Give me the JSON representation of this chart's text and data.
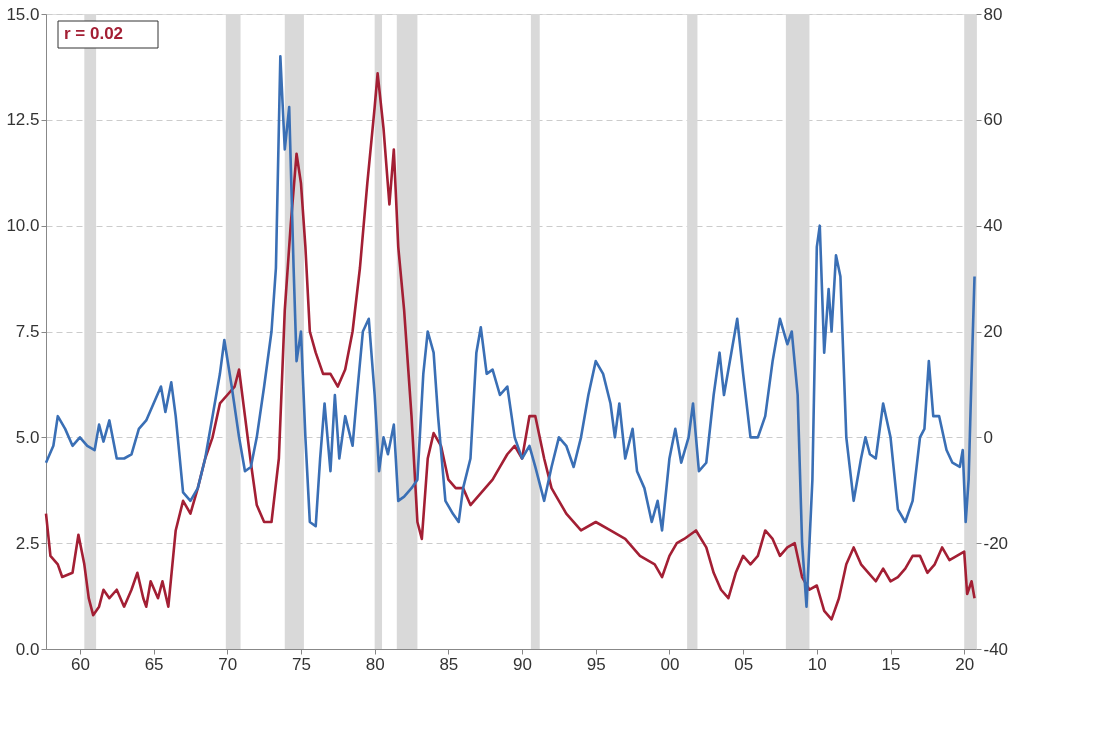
{
  "chart_data": {
    "type": "line",
    "annotations": [
      "r = 0.02"
    ],
    "xlim": [
      1957.7,
      2020.8
    ],
    "xticks": [
      {
        "value": 1960,
        "label": "60"
      },
      {
        "value": 1965,
        "label": "65"
      },
      {
        "value": 1970,
        "label": "70"
      },
      {
        "value": 1975,
        "label": "75"
      },
      {
        "value": 1980,
        "label": "80"
      },
      {
        "value": 1985,
        "label": "85"
      },
      {
        "value": 1990,
        "label": "90"
      },
      {
        "value": 1995,
        "label": "95"
      },
      {
        "value": 2000,
        "label": "00"
      },
      {
        "value": 2005,
        "label": "05"
      },
      {
        "value": 2010,
        "label": "10"
      },
      {
        "value": 2015,
        "label": "15"
      },
      {
        "value": 2020,
        "label": "20"
      }
    ],
    "ylim": [
      0,
      15
    ],
    "yticks": [
      {
        "value": 0,
        "label": "0.0"
      },
      {
        "value": 2.5,
        "label": "2.5"
      },
      {
        "value": 5,
        "label": "5.0"
      },
      {
        "value": 7.5,
        "label": "7.5"
      },
      {
        "value": 10,
        "label": "10.0"
      },
      {
        "value": 12.5,
        "label": "12.5"
      },
      {
        "value": 15,
        "label": "15.0"
      }
    ],
    "y2lim": [
      -40,
      80
    ],
    "y2ticks": [
      -40,
      -20,
      0,
      20,
      40,
      60,
      80
    ],
    "grid": "y",
    "line_style": "solid",
    "marker": "none",
    "bands": [
      {
        "axis": "x",
        "from": 1960.3,
        "to": 1961.1,
        "color": "#d9d9d9"
      },
      {
        "axis": "x",
        "from": 1969.9,
        "to": 1970.9,
        "color": "#d9d9d9"
      },
      {
        "axis": "x",
        "from": 1973.9,
        "to": 1975.2,
        "color": "#d9d9d9"
      },
      {
        "axis": "x",
        "from": 1980.0,
        "to": 1980.5,
        "color": "#d9d9d9"
      },
      {
        "axis": "x",
        "from": 1981.5,
        "to": 1982.9,
        "color": "#d9d9d9"
      },
      {
        "axis": "x",
        "from": 1990.6,
        "to": 1991.2,
        "color": "#d9d9d9"
      },
      {
        "axis": "x",
        "from": 2001.2,
        "to": 2001.9,
        "color": "#d9d9d9"
      },
      {
        "axis": "x",
        "from": 2007.9,
        "to": 2009.5,
        "color": "#d9d9d9"
      },
      {
        "axis": "x",
        "from": 2020.0,
        "to": 2020.8,
        "color": "#d9d9d9"
      }
    ],
    "series": [
      {
        "color": "#a31f34",
        "x": [
          1957.7,
          1958.0,
          1958.5,
          1958.8,
          1959.5,
          1959.9,
          1960.3,
          1960.6,
          1960.9,
          1961.3,
          1961.6,
          1962.0,
          1962.5,
          1963.0,
          1963.5,
          1963.9,
          1964.3,
          1964.5,
          1964.8,
          1965.3,
          1965.6,
          1966.0,
          1966.5,
          1967.0,
          1967.5,
          1968.0,
          1968.5,
          1969.0,
          1969.5,
          1970.0,
          1970.5,
          1970.8,
          1971.2,
          1971.6,
          1972.0,
          1972.5,
          1973.0,
          1973.5,
          1973.9,
          1974.3,
          1974.7,
          1975.0,
          1975.3,
          1975.6,
          1976.0,
          1976.5,
          1977.0,
          1977.5,
          1978.0,
          1978.5,
          1979.0,
          1979.5,
          1980.0,
          1980.2,
          1980.6,
          1981.0,
          1981.3,
          1981.6,
          1982.0,
          1982.5,
          1982.9,
          1983.2,
          1983.6,
          1984.0,
          1984.5,
          1985.0,
          1985.5,
          1986.0,
          1986.5,
          1987.0,
          1987.5,
          1988.0,
          1988.5,
          1989.0,
          1989.5,
          1990.0,
          1990.5,
          1990.9,
          1991.5,
          1992.0,
          1992.5,
          1993.0,
          1994.0,
          1995.0,
          1996.0,
          1997.0,
          1998.0,
          1999.0,
          1999.5,
          2000.0,
          2000.5,
          2001.0,
          2001.8,
          2002.5,
          2003.0,
          2003.5,
          2004.0,
          2004.5,
          2005.0,
          2005.5,
          2006.0,
          2006.5,
          2007.0,
          2007.5,
          2008.0,
          2008.5,
          2009.0,
          2009.5,
          2010.0,
          2010.5,
          2011.0,
          2011.5,
          2012.0,
          2012.5,
          2013.0,
          2013.5,
          2014.0,
          2014.5,
          2015.0,
          2015.5,
          2016.0,
          2016.5,
          2017.0,
          2017.5,
          2018.0,
          2018.5,
          2019.0,
          2019.5,
          2020.0,
          2020.2,
          2020.5,
          2020.7
        ],
        "values": [
          3.2,
          2.2,
          2.0,
          1.7,
          1.8,
          2.7,
          2.0,
          1.2,
          0.8,
          1.0,
          1.4,
          1.2,
          1.4,
          1.0,
          1.4,
          1.8,
          1.2,
          1.0,
          1.6,
          1.2,
          1.6,
          1.0,
          2.8,
          3.5,
          3.2,
          3.8,
          4.5,
          5.0,
          5.8,
          6.0,
          6.2,
          6.6,
          5.5,
          4.4,
          3.4,
          3.0,
          3.0,
          4.5,
          8.0,
          10.0,
          11.7,
          11.0,
          9.5,
          7.5,
          7.0,
          6.5,
          6.5,
          6.2,
          6.6,
          7.5,
          9.0,
          11.0,
          12.8,
          13.6,
          12.3,
          10.5,
          11.8,
          9.5,
          8.0,
          5.5,
          3.0,
          2.6,
          4.5,
          5.1,
          4.8,
          4.0,
          3.8,
          3.8,
          3.4,
          3.6,
          3.8,
          4.0,
          4.3,
          4.6,
          4.8,
          4.5,
          5.5,
          5.5,
          4.5,
          3.8,
          3.5,
          3.2,
          2.8,
          3.0,
          2.8,
          2.6,
          2.2,
          2.0,
          1.7,
          2.2,
          2.5,
          2.6,
          2.8,
          2.4,
          1.8,
          1.4,
          1.2,
          1.8,
          2.2,
          2.0,
          2.2,
          2.8,
          2.6,
          2.2,
          2.4,
          2.5,
          1.7,
          1.4,
          1.5,
          0.9,
          0.7,
          1.2,
          2.0,
          2.4,
          2.0,
          1.8,
          1.6,
          1.9,
          1.6,
          1.7,
          1.9,
          2.2,
          2.2,
          1.8,
          2.0,
          2.4,
          2.1,
          2.2,
          2.3,
          1.3,
          1.6,
          1.2
        ]
      },
      {
        "color": "#3a6fb5",
        "axis": "y2",
        "x": [
          1957.7,
          1958.2,
          1958.5,
          1959.0,
          1959.5,
          1960.0,
          1960.5,
          1961.0,
          1961.3,
          1961.6,
          1962.0,
          1962.5,
          1963.0,
          1963.5,
          1964.0,
          1964.5,
          1965.0,
          1965.5,
          1965.8,
          1966.2,
          1966.5,
          1967.0,
          1967.5,
          1968.0,
          1968.5,
          1969.0,
          1969.5,
          1969.8,
          1970.3,
          1970.8,
          1971.2,
          1971.6,
          1972.0,
          1972.5,
          1973.0,
          1973.3,
          1973.6,
          1973.9,
          1974.2,
          1974.5,
          1974.7,
          1975.0,
          1975.3,
          1975.6,
          1976.0,
          1976.3,
          1976.6,
          1977.0,
          1977.3,
          1977.6,
          1978.0,
          1978.5,
          1978.8,
          1979.2,
          1979.6,
          1980.0,
          1980.3,
          1980.6,
          1980.9,
          1981.3,
          1981.6,
          1982.0,
          1982.5,
          1982.9,
          1983.3,
          1983.6,
          1984.0,
          1984.3,
          1984.8,
          1985.3,
          1985.7,
          1986.0,
          1986.5,
          1986.9,
          1987.2,
          1987.6,
          1988.0,
          1988.5,
          1989.0,
          1989.5,
          1990.0,
          1990.5,
          1990.9,
          1991.5,
          1992.0,
          1992.5,
          1993.0,
          1993.5,
          1994.0,
          1994.5,
          1995.0,
          1995.5,
          1996.0,
          1996.3,
          1996.6,
          1997.0,
          1997.5,
          1997.8,
          1998.3,
          1998.8,
          1999.2,
          1999.5,
          2000.0,
          2000.4,
          2000.8,
          2001.3,
          2001.6,
          2002.0,
          2002.5,
          2003.0,
          2003.4,
          2003.7,
          2004.2,
          2004.6,
          2005.0,
          2005.5,
          2006.0,
          2006.5,
          2007.0,
          2007.5,
          2008.0,
          2008.3,
          2008.7,
          2009.0,
          2009.3,
          2009.7,
          2010.0,
          2010.2,
          2010.5,
          2010.8,
          2011.0,
          2011.3,
          2011.6,
          2012.0,
          2012.5,
          2013.0,
          2013.3,
          2013.6,
          2014.0,
          2014.5,
          2015.0,
          2015.5,
          2016.0,
          2016.5,
          2017.0,
          2017.3,
          2017.6,
          2017.9,
          2018.3,
          2018.8,
          2019.2,
          2019.7,
          2019.9,
          2020.1,
          2020.3,
          2020.5,
          2020.7
        ],
        "values": [
          -4.8,
          -1.6,
          4,
          1.6,
          -1.6,
          0,
          -1.6,
          -2.4,
          2.4,
          -0.8,
          3.2,
          -4,
          -4,
          -3.2,
          1.6,
          3.2,
          6.4,
          9.6,
          4.8,
          10.4,
          4,
          -10.4,
          -12,
          -9.6,
          -4,
          4,
          12,
          18.4,
          9.6,
          0,
          -6.4,
          -5.6,
          0,
          9.6,
          20,
          32,
          72,
          54.4,
          62.4,
          32,
          14.4,
          20,
          0,
          -16,
          -16.8,
          -4,
          6.4,
          -6.4,
          8,
          -4,
          4,
          -1.6,
          8,
          20,
          22.4,
          8,
          -6.4,
          0,
          -3.2,
          2.4,
          -12,
          -11.2,
          -9.6,
          -8,
          12,
          20,
          16,
          4,
          -12,
          -14.4,
          -16,
          -9.6,
          -4,
          16,
          20.8,
          12,
          12.8,
          8,
          9.6,
          0,
          -4,
          -1.6,
          -5.6,
          -12,
          -5.6,
          0,
          -1.6,
          -5.6,
          0,
          8,
          14.4,
          12,
          6.4,
          0,
          6.4,
          -4,
          1.6,
          -6.4,
          -9.6,
          -16,
          -12,
          -17.6,
          -4,
          1.6,
          -4.8,
          0,
          6.4,
          -6.4,
          -4.8,
          8,
          16,
          8,
          16,
          22.4,
          12,
          0,
          0,
          4,
          14.4,
          22.4,
          17.6,
          20,
          8,
          -20,
          -32,
          -8,
          36,
          40,
          16,
          28,
          20,
          34.4,
          30.4,
          0,
          -12,
          -4,
          0,
          -3.2,
          -4,
          6.4,
          0,
          -13.6,
          -16,
          -12,
          0,
          1.6,
          14.4,
          4,
          4,
          -2.4,
          -4.8,
          -5.6,
          -2.4,
          -16,
          -8,
          12,
          30.4
        ]
      }
    ]
  }
}
